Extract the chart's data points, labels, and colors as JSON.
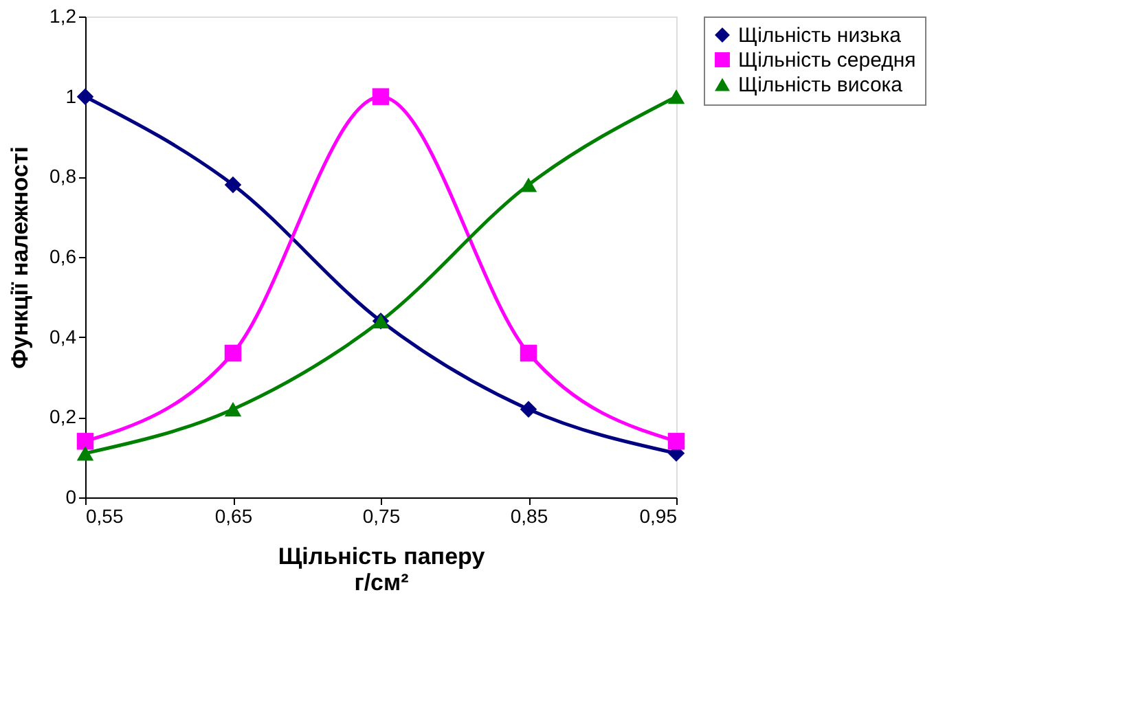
{
  "chart_data": {
    "type": "line",
    "xlabel": "Щільність паперу\nг/см²",
    "ylabel": "Функції належності",
    "x": [
      0.55,
      0.65,
      0.75,
      0.85,
      0.95
    ],
    "series": [
      {
        "name": "Щільність низька",
        "color": "#000080",
        "marker": "diamond",
        "values": [
          1.0,
          0.78,
          0.44,
          0.22,
          0.11
        ]
      },
      {
        "name": "Щільність середня",
        "color": "#ff00ff",
        "marker": "square",
        "values": [
          0.14,
          0.36,
          1.0,
          0.36,
          0.14
        ]
      },
      {
        "name": "Щільність висока",
        "color": "#008000",
        "marker": "triangle",
        "values": [
          0.11,
          0.22,
          0.44,
          0.78,
          1.0
        ]
      }
    ],
    "xlim": [
      0.55,
      0.95
    ],
    "xticks": [
      {
        "value": 0.55,
        "label": "0,55"
      },
      {
        "value": 0.65,
        "label": "0,65"
      },
      {
        "value": 0.75,
        "label": "0,75"
      },
      {
        "value": 0.85,
        "label": "0,85"
      },
      {
        "value": 0.95,
        "label": "0,95"
      }
    ],
    "ylim": [
      0,
      1.2
    ],
    "yticks": [
      0,
      {
        "value": 0.2,
        "label": "0,2"
      },
      {
        "value": 0.4,
        "label": "0,4"
      },
      {
        "value": 0.6,
        "label": "0,6"
      },
      {
        "value": 0.8,
        "label": "0,8"
      },
      1,
      {
        "value": 1.2,
        "label": "1,2"
      }
    ],
    "grid": false,
    "legend": "right",
    "line_style": "solid"
  }
}
